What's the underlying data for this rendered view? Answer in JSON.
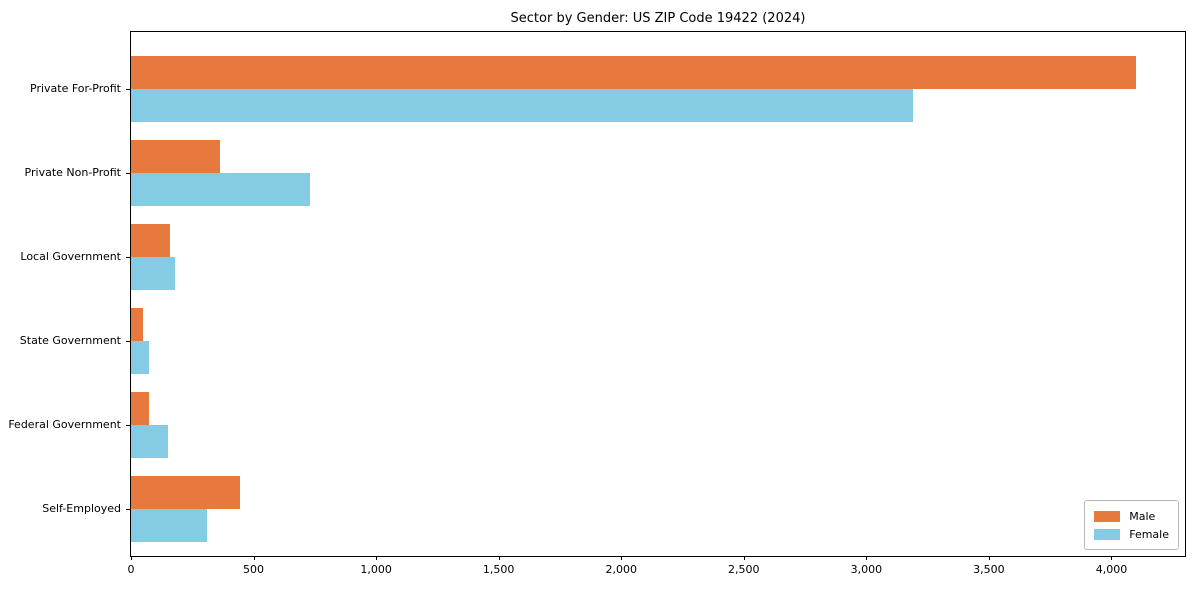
{
  "chart_data": {
    "type": "bar",
    "orientation": "horizontal",
    "title": "Sector by Gender: US ZIP Code 19422 (2024)",
    "categories": [
      "Private For-Profit",
      "Private Non-Profit",
      "Local Government",
      "State Government",
      "Federal Government",
      "Self-Employed"
    ],
    "series": [
      {
        "name": "Male",
        "color": "#e8793e",
        "values": [
          4100,
          365,
          160,
          50,
          75,
          445
        ]
      },
      {
        "name": "Female",
        "color": "#85cbe4",
        "values": [
          3190,
          730,
          180,
          72,
          150,
          310
        ]
      }
    ],
    "xlabel": "",
    "ylabel": "",
    "xlim": [
      0,
      4300
    ],
    "xticks": [
      0,
      500,
      1000,
      1500,
      2000,
      2500,
      3000,
      3500,
      4000
    ],
    "xtick_labels": [
      "0",
      "500",
      "1,000",
      "1,500",
      "2,000",
      "2,500",
      "3,000",
      "3,500",
      "4,000"
    ],
    "grid": false,
    "legend_position": "lower right",
    "background_color": "#ffffff",
    "axis_color": "#000000"
  }
}
